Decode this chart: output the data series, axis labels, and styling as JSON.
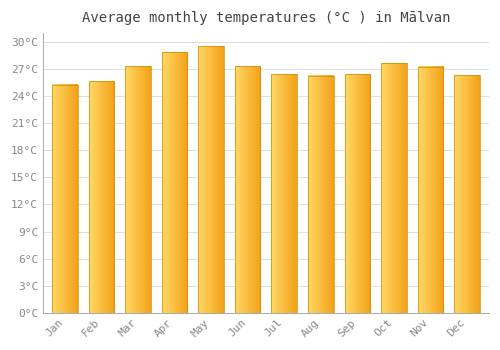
{
  "months": [
    "Jan",
    "Feb",
    "Mar",
    "Apr",
    "May",
    "Jun",
    "Jul",
    "Aug",
    "Sep",
    "Oct",
    "Nov",
    "Dec"
  ],
  "temperatures": [
    25.3,
    25.7,
    27.4,
    28.9,
    29.6,
    27.4,
    26.5,
    26.3,
    26.5,
    27.7,
    27.3,
    26.4
  ],
  "bar_color_left": "#FFD966",
  "bar_color_right": "#F4A118",
  "bar_edge_color": "#CC8800",
  "background_color": "#FFFFFF",
  "plot_bg_color": "#FFFFFF",
  "grid_color": "#DDDDDD",
  "title": "Average monthly temperatures (°C ) in Mālvan",
  "title_fontsize": 10,
  "tick_label_color": "#888888",
  "title_color": "#444444",
  "ylim": [
    0,
    31
  ],
  "yticks": [
    0,
    3,
    6,
    9,
    12,
    15,
    18,
    21,
    24,
    27,
    30
  ],
  "ytick_labels": [
    "0°C",
    "3°C",
    "6°C",
    "9°C",
    "12°C",
    "15°C",
    "18°C",
    "21°C",
    "24°C",
    "27°C",
    "30°C"
  ],
  "bar_width": 0.7,
  "left_spine_visible": true,
  "bottom_spine_visible": true
}
